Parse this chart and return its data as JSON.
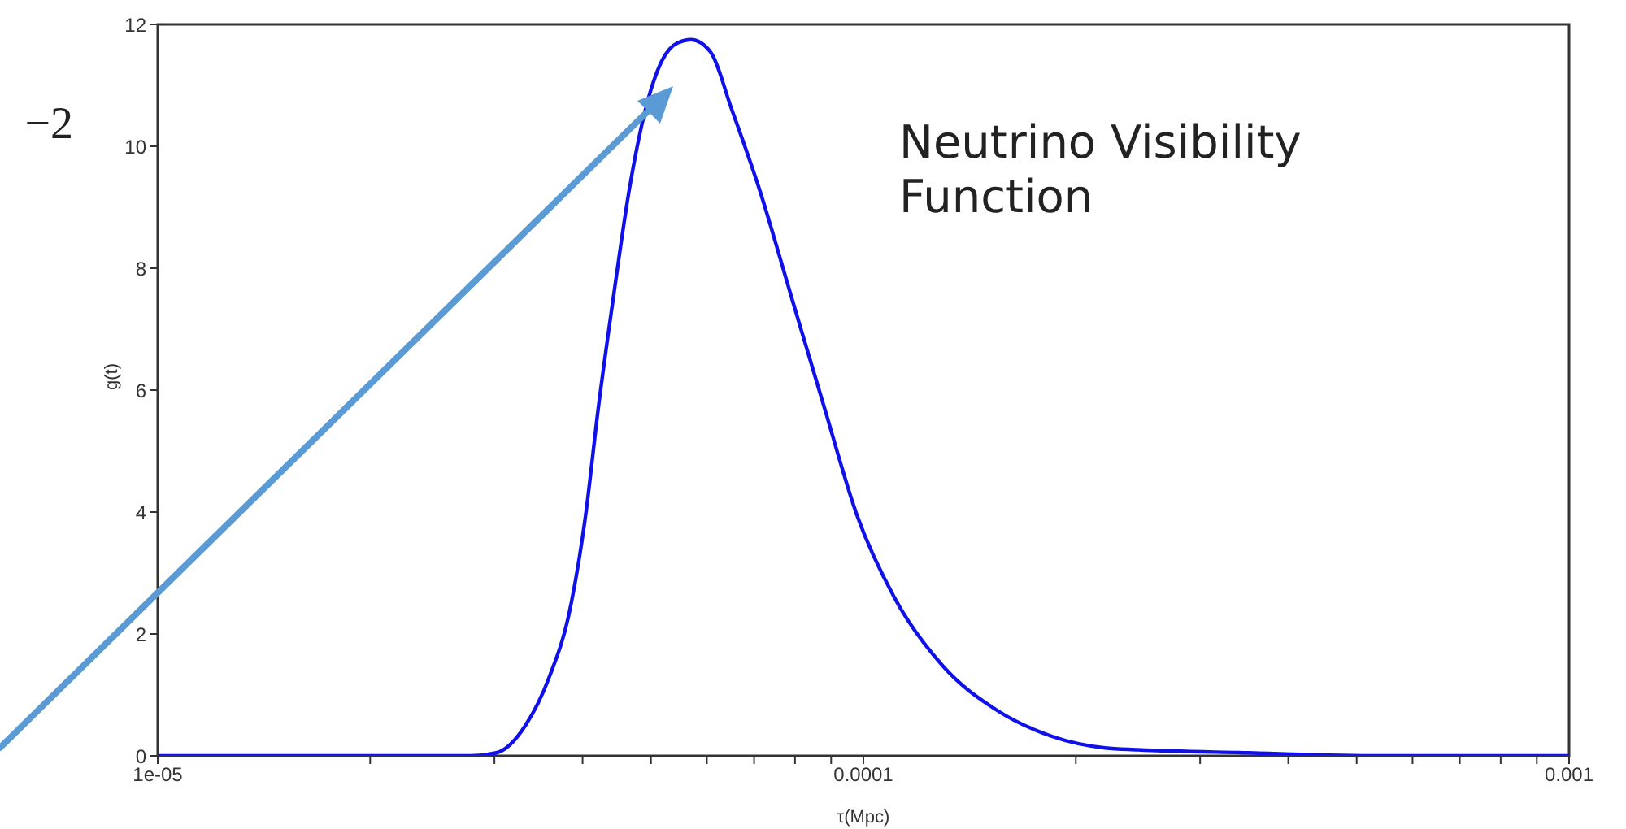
{
  "chart_data": {
    "type": "line",
    "xlabel": "τ(Mpc)",
    "ylabel": "g(t)",
    "log": "x",
    "annotations": [
      "Neutrino Visibility\nFunction",
      "−2"
    ],
    "xlim": [
      1e-05,
      0.001
    ],
    "xticks": [
      {
        "value": 1e-05,
        "label": "1e-05"
      },
      {
        "value": 2e-05,
        "label": null
      },
      {
        "value": 3e-05,
        "label": null
      },
      {
        "value": 4e-05,
        "label": null
      },
      {
        "value": 5e-05,
        "label": null
      },
      {
        "value": 6e-05,
        "label": null
      },
      {
        "value": 7e-05,
        "label": null
      },
      {
        "value": 8e-05,
        "label": null
      },
      {
        "value": 9e-05,
        "label": null
      },
      {
        "value": 0.0001,
        "label": "0.0001"
      },
      {
        "value": 0.0002,
        "label": null
      },
      {
        "value": 0.0003,
        "label": null
      },
      {
        "value": 0.0004,
        "label": null
      },
      {
        "value": 0.0005,
        "label": null
      },
      {
        "value": 0.0006,
        "label": null
      },
      {
        "value": 0.0007,
        "label": null
      },
      {
        "value": 0.0008,
        "label": null
      },
      {
        "value": 0.0009,
        "label": null
      },
      {
        "value": 0.001,
        "label": "0.001"
      }
    ],
    "ylim": [
      0,
      12
    ],
    "yticks": [
      0,
      2,
      4,
      6,
      8,
      10,
      12
    ],
    "grid": false,
    "legend": false,
    "marker": "none",
    "line_style": "solid",
    "series": [
      {
        "color": "#1010e8",
        "x": [
          1e-05,
          2e-05,
          2.78e-05,
          3.02e-05,
          3.32e-05,
          3.59e-05,
          3.83e-05,
          4.04e-05,
          4.21e-05,
          4.42e-05,
          4.66e-05,
          4.91e-05,
          5.18e-05,
          5.46e-05,
          5.7e-05,
          6.07e-05,
          6.51e-05,
          7.12e-05,
          7.92e-05,
          8.81e-05,
          9.79e-05,
          0.0001106,
          0.0001297,
          0.0001545,
          0.000185,
          0.00022,
          0.000245,
          0.00035,
          0.00054,
          0.001
        ],
        "values": [
          0,
          0,
          0,
          0.05,
          0.5,
          1.3,
          2.35,
          3.95,
          5.7,
          7.5,
          9.3,
          10.6,
          11.4,
          11.7,
          11.75,
          11.55,
          10.6,
          9.3,
          7.5,
          5.7,
          3.95,
          2.6,
          1.47,
          0.75,
          0.32,
          0.13,
          0.1,
          0.05,
          0,
          0
        ]
      }
    ]
  }
}
